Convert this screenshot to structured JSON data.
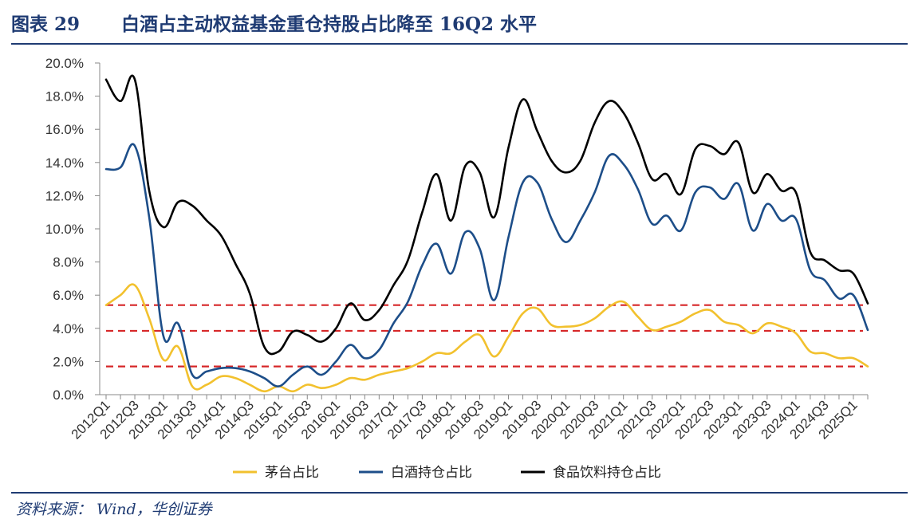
{
  "header": {
    "label": "图表 29",
    "title": "白酒占主动权益基金重仓持股占比降至 16Q2 水平"
  },
  "source": "资料来源： Wind，华创证券",
  "colors": {
    "maotai": "#f2c12e",
    "baijiu": "#1d4e89",
    "food": "#000000",
    "reference": "#d62728",
    "accent": "#1f3b73"
  },
  "chart_data": {
    "type": "line",
    "title": "",
    "xlabel": "",
    "ylabel": "",
    "ylim": [
      0,
      20
    ],
    "y_ticks": [
      "0.0%",
      "2.0%",
      "4.0%",
      "6.0%",
      "8.0%",
      "10.0%",
      "12.0%",
      "14.0%",
      "16.0%",
      "18.0%",
      "20.0%"
    ],
    "categories": [
      "2012Q1",
      "2012Q2",
      "2012Q3",
      "2012Q4",
      "2013Q1",
      "2013Q2",
      "2013Q3",
      "2013Q4",
      "2014Q1",
      "2014Q2",
      "2014Q3",
      "2014Q4",
      "2015Q1",
      "2015Q2",
      "2015Q3",
      "2015Q4",
      "2016Q1",
      "2016Q2",
      "2016Q3",
      "2016Q4",
      "2017Q1",
      "2017Q2",
      "2017Q3",
      "2017Q4",
      "2018Q1",
      "2018Q2",
      "2018Q3",
      "2018Q4",
      "2019Q1",
      "2019Q2",
      "2019Q3",
      "2019Q4",
      "2020Q1",
      "2020Q2",
      "2020Q3",
      "2020Q4",
      "2021Q1",
      "2021Q2",
      "2021Q3",
      "2021Q4",
      "2022Q1",
      "2022Q2",
      "2022Q3",
      "2022Q4",
      "2023Q1",
      "2023Q2",
      "2023Q3",
      "2023Q4",
      "2024Q1",
      "2024Q2",
      "2024Q3",
      "2024Q4",
      "2025Q1",
      "2025Q2"
    ],
    "x_tick_labels": [
      "2012Q1",
      "2012Q3",
      "2013Q1",
      "2013Q3",
      "2014Q1",
      "2014Q3",
      "2015Q1",
      "2015Q3",
      "2016Q1",
      "2016Q3",
      "2017Q1",
      "2017Q3",
      "2018Q1",
      "2018Q3",
      "2019Q1",
      "2019Q3",
      "2020Q1",
      "2020Q3",
      "2021Q1",
      "2021Q3",
      "2022Q1",
      "2022Q3",
      "2023Q1",
      "2023Q3",
      "2024Q1",
      "2024Q3",
      "2025Q1"
    ],
    "series": [
      {
        "name": "茅台占比",
        "key": "maotai",
        "values": [
          5.4,
          6.0,
          6.6,
          4.6,
          2.1,
          2.9,
          0.5,
          0.6,
          1.1,
          1.0,
          0.6,
          0.2,
          0.5,
          0.2,
          0.6,
          0.4,
          0.6,
          1.0,
          0.9,
          1.2,
          1.4,
          1.6,
          2.0,
          2.5,
          2.5,
          3.2,
          3.6,
          2.3,
          3.5,
          4.9,
          5.2,
          4.2,
          4.1,
          4.2,
          4.6,
          5.3,
          5.6,
          4.7,
          3.9,
          4.1,
          4.4,
          4.9,
          5.1,
          4.4,
          4.2,
          3.7,
          4.3,
          4.1,
          3.7,
          2.6,
          2.5,
          2.2,
          2.2,
          1.7
        ]
      },
      {
        "name": "白酒持仓占比",
        "key": "baijiu",
        "values": [
          13.6,
          13.7,
          15.0,
          10.7,
          3.5,
          4.3,
          1.2,
          1.4,
          1.6,
          1.6,
          1.4,
          1.0,
          0.5,
          1.2,
          1.7,
          1.2,
          2.0,
          3.0,
          2.2,
          2.7,
          4.3,
          5.6,
          7.8,
          9.1,
          7.3,
          9.8,
          8.8,
          5.7,
          9.5,
          12.8,
          12.8,
          10.6,
          9.2,
          10.5,
          12.2,
          14.4,
          13.9,
          12.4,
          10.3,
          10.8,
          9.9,
          12.2,
          12.5,
          11.8,
          12.7,
          9.9,
          11.5,
          10.5,
          10.6,
          7.5,
          6.9,
          5.8,
          6.0,
          3.9
        ]
      },
      {
        "name": "食品饮料持仓占比",
        "key": "food",
        "values": [
          19.0,
          17.7,
          19.0,
          12.3,
          10.1,
          11.6,
          11.4,
          10.5,
          9.6,
          7.9,
          6.1,
          2.9,
          2.6,
          3.8,
          3.6,
          3.2,
          4.0,
          5.5,
          4.5,
          5.1,
          6.6,
          8.1,
          11.0,
          13.3,
          10.5,
          13.8,
          13.4,
          10.7,
          14.9,
          17.8,
          15.9,
          14.1,
          13.4,
          14.1,
          16.4,
          17.7,
          17.0,
          15.2,
          13.0,
          13.3,
          12.1,
          14.8,
          15.0,
          14.5,
          15.2,
          12.2,
          13.3,
          12.3,
          12.2,
          8.6,
          8.1,
          7.5,
          7.3,
          5.5
        ]
      }
    ],
    "reference_lines": [
      5.4,
      3.85,
      1.7
    ],
    "legend": "bottom"
  }
}
